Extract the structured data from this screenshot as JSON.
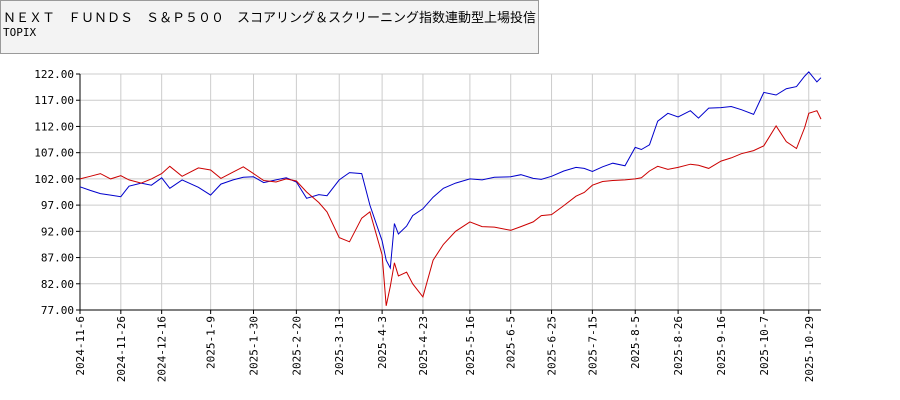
{
  "legend": {
    "line1": "ＮＥＸＴ　ＦＵＮＤＳ　Ｓ＆Ｐ５００　スコアリング＆スクリーニング指数連動型上場投信",
    "line2": "TOPIX"
  },
  "colors": {
    "fund": "#0000cc",
    "topix": "#cc0000",
    "grid": "#cccccc",
    "axis": "#000000"
  },
  "chart_data": {
    "type": "line",
    "title": "",
    "xlabel": "",
    "ylabel": "",
    "ylim": [
      77.0,
      122.0
    ],
    "y_ticks": [
      "122.00",
      "117.00",
      "112.00",
      "107.00",
      "102.00",
      "97.00",
      "92.00",
      "87.00",
      "82.00",
      "77.00"
    ],
    "x_ticks": [
      "2024-11-6",
      "2024-11-26",
      "2024-12-16",
      "2025-1-9",
      "2025-1-30",
      "2025-2-20",
      "2025-3-13",
      "2025-4-3",
      "2025-4-23",
      "2025-5-16",
      "2025-6-5",
      "2025-6-25",
      "2025-7-15",
      "2025-8-5",
      "2025-8-26",
      "2025-9-16",
      "2025-10-7",
      "2025-10-29"
    ],
    "grid": true,
    "series": [
      {
        "name": "ＮＥＸＴ　ＦＵＮＤＳ　Ｓ＆Ｐ５００　スコアリング＆スクリーニング指数連動型上場投信",
        "x": [
          "2024-11-6",
          "2024-11-11",
          "2024-11-16",
          "2024-11-21",
          "2024-11-26",
          "2024-11-30",
          "2024-12-6",
          "2024-12-11",
          "2024-12-16",
          "2024-12-20",
          "2024-12-26",
          "2025-1-3",
          "2025-1-9",
          "2025-1-14",
          "2025-1-20",
          "2025-1-25",
          "2025-1-30",
          "2025-2-4",
          "2025-2-10",
          "2025-2-15",
          "2025-2-20",
          "2025-2-25",
          "2025-3-3",
          "2025-3-7",
          "2025-3-13",
          "2025-3-18",
          "2025-3-24",
          "2025-3-28",
          "2025-4-3",
          "2025-4-5",
          "2025-4-7",
          "2025-4-9",
          "2025-4-11",
          "2025-4-15",
          "2025-4-18",
          "2025-4-23",
          "2025-4-28",
          "2025-5-3",
          "2025-5-9",
          "2025-5-16",
          "2025-5-22",
          "2025-5-28",
          "2025-6-5",
          "2025-6-10",
          "2025-6-16",
          "2025-6-20",
          "2025-6-25",
          "2025-7-1",
          "2025-7-7",
          "2025-7-11",
          "2025-7-15",
          "2025-7-20",
          "2025-7-25",
          "2025-7-31",
          "2025-8-5",
          "2025-8-8",
          "2025-8-12",
          "2025-8-16",
          "2025-8-21",
          "2025-8-26",
          "2025-9-1",
          "2025-9-5",
          "2025-9-10",
          "2025-9-16",
          "2025-9-21",
          "2025-9-26",
          "2025-10-2",
          "2025-10-7",
          "2025-10-13",
          "2025-10-18",
          "2025-10-23",
          "2025-10-27",
          "2025-10-29",
          "2025-11-2",
          "2025-11-4"
        ],
        "y": [
          100.5,
          99.8,
          99.2,
          98.9,
          98.6,
          100.6,
          101.2,
          100.8,
          102.2,
          100.2,
          101.8,
          100.4,
          98.9,
          101.0,
          101.8,
          102.3,
          102.4,
          101.3,
          101.8,
          102.2,
          101.4,
          98.3,
          99.0,
          98.8,
          101.8,
          103.2,
          103.0,
          97.0,
          90.2,
          86.5,
          85.0,
          93.5,
          91.5,
          93.0,
          95.0,
          96.3,
          98.5,
          100.2,
          101.2,
          102.0,
          101.8,
          102.3,
          102.4,
          102.8,
          102.1,
          101.9,
          102.5,
          103.5,
          104.2,
          104.0,
          103.4,
          104.3,
          105.0,
          104.5,
          108.0,
          107.6,
          108.5,
          113.0,
          114.5,
          113.8,
          115.0,
          113.6,
          115.5,
          115.6,
          115.8,
          115.2,
          114.3,
          118.5,
          118.0,
          119.2,
          119.6,
          121.6,
          122.4,
          120.5,
          121.3
        ]
      },
      {
        "name": "TOPIX",
        "x": [
          "2024-11-6",
          "2024-11-11",
          "2024-11-16",
          "2024-11-21",
          "2024-11-26",
          "2024-11-30",
          "2024-12-6",
          "2024-12-11",
          "2024-12-16",
          "2024-12-20",
          "2024-12-26",
          "2025-1-3",
          "2025-1-9",
          "2025-1-14",
          "2025-1-20",
          "2025-1-25",
          "2025-1-30",
          "2025-2-4",
          "2025-2-10",
          "2025-2-15",
          "2025-2-20",
          "2025-2-25",
          "2025-3-3",
          "2025-3-7",
          "2025-3-13",
          "2025-3-18",
          "2025-3-24",
          "2025-3-28",
          "2025-4-3",
          "2025-4-5",
          "2025-4-7",
          "2025-4-9",
          "2025-4-11",
          "2025-4-15",
          "2025-4-18",
          "2025-4-23",
          "2025-4-28",
          "2025-5-3",
          "2025-5-9",
          "2025-5-16",
          "2025-5-22",
          "2025-5-28",
          "2025-6-5",
          "2025-6-10",
          "2025-6-16",
          "2025-6-20",
          "2025-6-25",
          "2025-7-1",
          "2025-7-7",
          "2025-7-11",
          "2025-7-15",
          "2025-7-20",
          "2025-7-25",
          "2025-7-31",
          "2025-8-5",
          "2025-8-8",
          "2025-8-12",
          "2025-8-16",
          "2025-8-21",
          "2025-8-26",
          "2025-9-1",
          "2025-9-5",
          "2025-9-10",
          "2025-9-16",
          "2025-9-21",
          "2025-9-26",
          "2025-10-2",
          "2025-10-7",
          "2025-10-13",
          "2025-10-18",
          "2025-10-23",
          "2025-10-27",
          "2025-10-29",
          "2025-11-2",
          "2025-11-4"
        ],
        "y": [
          102.0,
          102.5,
          103.0,
          102.0,
          102.6,
          101.8,
          101.2,
          102.0,
          103.0,
          104.4,
          102.5,
          104.1,
          103.7,
          102.1,
          103.3,
          104.3,
          103.0,
          101.7,
          101.4,
          102.0,
          101.6,
          99.5,
          97.5,
          95.7,
          90.8,
          90.0,
          94.5,
          95.7,
          87.5,
          77.8,
          81.5,
          86.0,
          83.5,
          84.2,
          82.0,
          79.5,
          86.5,
          89.5,
          92.0,
          93.8,
          92.9,
          92.8,
          92.2,
          92.9,
          93.8,
          95.0,
          95.2,
          96.9,
          98.7,
          99.4,
          100.8,
          101.5,
          101.7,
          101.8,
          102.0,
          102.2,
          103.5,
          104.4,
          103.8,
          104.2,
          104.8,
          104.6,
          104.0,
          105.4,
          106.0,
          106.8,
          107.4,
          108.3,
          112.1,
          109.1,
          107.8,
          111.8,
          114.5,
          115.0,
          113.4
        ]
      }
    ]
  }
}
